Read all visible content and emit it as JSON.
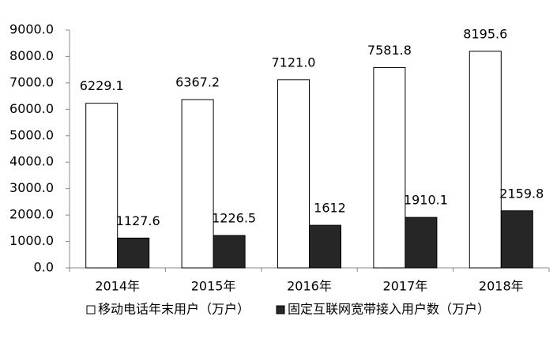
{
  "chart_data": {
    "type": "bar",
    "categories": [
      "2014年",
      "2015年",
      "2016年",
      "2017年",
      "2018年"
    ],
    "series": [
      {
        "name": "移动电话年末用户（万户）",
        "color": "#ffffff",
        "values": [
          6229.1,
          6367.2,
          7121.0,
          7581.8,
          8195.6
        ],
        "value_labels": [
          "6229.1",
          "6367.2",
          "7121.0",
          "7581.8",
          "8195.6"
        ]
      },
      {
        "name": "固定互联网宽带接入用户数（万户）",
        "color": "#262626",
        "values": [
          1127.6,
          1226.5,
          1612,
          1910.1,
          2159.8
        ],
        "value_labels": [
          "1127.6",
          "1226.5",
          "1612",
          "1910.1",
          "2159.8"
        ]
      }
    ],
    "ylim": [
      0,
      9000
    ],
    "yticks": [
      {
        "value": 0,
        "label": "0.0"
      },
      {
        "value": 1000,
        "label": "1000.0"
      },
      {
        "value": 2000,
        "label": "2000.0"
      },
      {
        "value": 3000,
        "label": "3000.0"
      },
      {
        "value": 4000,
        "label": "4000.0"
      },
      {
        "value": 5000,
        "label": "5000.0"
      },
      {
        "value": 6000,
        "label": "6000.0"
      },
      {
        "value": 7000,
        "label": "7000.0"
      },
      {
        "value": 8000,
        "label": "8000.0"
      },
      {
        "value": 9000,
        "label": "9000.0"
      }
    ],
    "grid": false,
    "legend": "bottom"
  }
}
